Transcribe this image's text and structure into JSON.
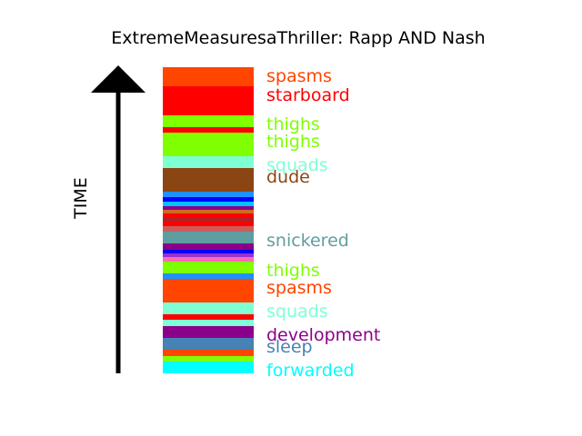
{
  "chart_data": {
    "type": "bar",
    "title": "ExtremeMeasuresaThriller: Rapp AND Nash",
    "ylabel": "TIME",
    "segments": [
      {
        "start": 0,
        "end": 21,
        "color": "#ff4500",
        "label": "spasms"
      },
      {
        "start": 21,
        "end": 53,
        "color": "#ff0000",
        "label": "starboard"
      },
      {
        "start": 53,
        "end": 66,
        "color": "#7fff00",
        "label": "thighs"
      },
      {
        "start": 66,
        "end": 72,
        "color": "#ff0000",
        "label": ""
      },
      {
        "start": 72,
        "end": 98,
        "color": "#7fff00",
        "label": "thighs"
      },
      {
        "start": 98,
        "end": 111,
        "color": "#7fffd4",
        "label": "squads"
      },
      {
        "start": 111,
        "end": 137,
        "color": "#8b4513",
        "label": "dude"
      },
      {
        "start": 137,
        "end": 143,
        "color": "#1e90ff",
        "label": ""
      },
      {
        "start": 143,
        "end": 148,
        "color": "#0000ff",
        "label": ""
      },
      {
        "start": 148,
        "end": 153,
        "color": "#00bfff",
        "label": ""
      },
      {
        "start": 153,
        "end": 157,
        "color": "#8b008b",
        "label": ""
      },
      {
        "start": 157,
        "end": 161,
        "color": "#d2691e",
        "label": ""
      },
      {
        "start": 161,
        "end": 166,
        "color": "#ff0000",
        "label": ""
      },
      {
        "start": 166,
        "end": 170,
        "color": "#b22222",
        "label": ""
      },
      {
        "start": 170,
        "end": 175,
        "color": "#ff0000",
        "label": ""
      },
      {
        "start": 175,
        "end": 181,
        "color": "#cd5c5c",
        "label": ""
      },
      {
        "start": 181,
        "end": 194,
        "color": "#5f9ea0",
        "label": "snickered"
      },
      {
        "start": 194,
        "end": 201,
        "color": "#8b008b",
        "label": ""
      },
      {
        "start": 201,
        "end": 205,
        "color": "#0000ff",
        "label": ""
      },
      {
        "start": 205,
        "end": 209,
        "color": "#9932cc",
        "label": ""
      },
      {
        "start": 209,
        "end": 214,
        "color": "#ff69b4",
        "label": ""
      },
      {
        "start": 214,
        "end": 227,
        "color": "#7fff00",
        "label": "thighs"
      },
      {
        "start": 227,
        "end": 233,
        "color": "#1e90ff",
        "label": ""
      },
      {
        "start": 233,
        "end": 259,
        "color": "#ff4500",
        "label": "spasms"
      },
      {
        "start": 259,
        "end": 272,
        "color": "#7fffd4",
        "label": "squads"
      },
      {
        "start": 272,
        "end": 278,
        "color": "#ff0000",
        "label": ""
      },
      {
        "start": 278,
        "end": 285,
        "color": "#7fffd4",
        "label": ""
      },
      {
        "start": 285,
        "end": 298,
        "color": "#8b008b",
        "label": "development"
      },
      {
        "start": 298,
        "end": 311,
        "color": "#4682b4",
        "label": "sleep"
      },
      {
        "start": 311,
        "end": 318,
        "color": "#ff4500",
        "label": ""
      },
      {
        "start": 318,
        "end": 324,
        "color": "#7fff00",
        "label": ""
      },
      {
        "start": 324,
        "end": 337,
        "color": "#00ffff",
        "label": "forwarded"
      }
    ]
  }
}
